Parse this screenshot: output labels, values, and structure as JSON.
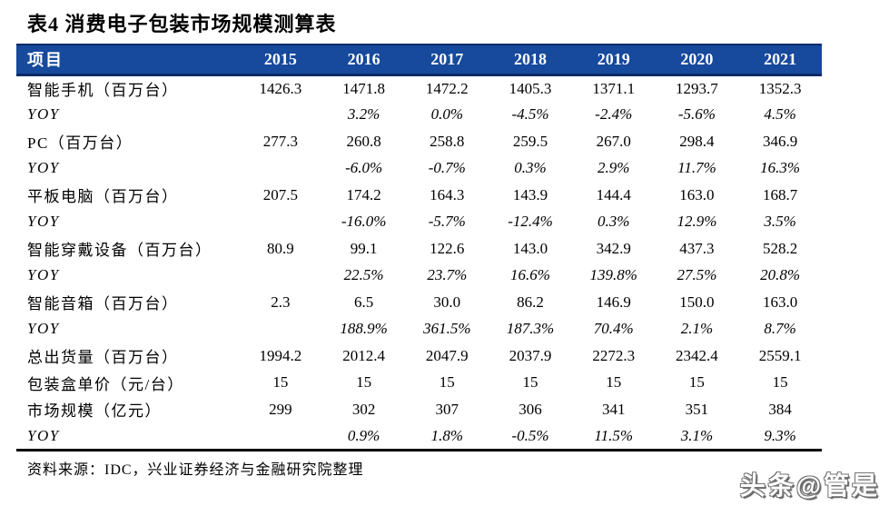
{
  "title": "表4 消费电子包装市场规模测算表",
  "colors": {
    "header_bg": "#17499D",
    "header_border": "#0A2A66",
    "table_bottom_border": "#000000",
    "text": "#000000",
    "header_text": "#FFFFFF"
  },
  "table": {
    "header": [
      "项目",
      "2015",
      "2016",
      "2017",
      "2018",
      "2019",
      "2020",
      "2021"
    ],
    "rows": [
      {
        "label": "智能手机（百万台）",
        "italic": false,
        "values": [
          "1426.3",
          "1471.8",
          "1472.2",
          "1405.3",
          "1371.1",
          "1293.7",
          "1352.3"
        ]
      },
      {
        "label": "YOY",
        "italic": true,
        "values": [
          "",
          "3.2%",
          "0.0%",
          "-4.5%",
          "-2.4%",
          "-5.6%",
          "4.5%"
        ]
      },
      {
        "label": "PC（百万台）",
        "italic": false,
        "values": [
          "277.3",
          "260.8",
          "258.8",
          "259.5",
          "267.0",
          "298.4",
          "346.9"
        ]
      },
      {
        "label": "YOY",
        "italic": true,
        "values": [
          "",
          "-6.0%",
          "-0.7%",
          "0.3%",
          "2.9%",
          "11.7%",
          "16.3%"
        ]
      },
      {
        "label": "平板电脑（百万台）",
        "italic": false,
        "values": [
          "207.5",
          "174.2",
          "164.3",
          "143.9",
          "144.4",
          "163.0",
          "168.7"
        ]
      },
      {
        "label": "YOY",
        "italic": true,
        "values": [
          "",
          "-16.0%",
          "-5.7%",
          "-12.4%",
          "0.3%",
          "12.9%",
          "3.5%"
        ]
      },
      {
        "label": "智能穿戴设备（百万台）",
        "italic": false,
        "values": [
          "80.9",
          "99.1",
          "122.6",
          "143.0",
          "342.9",
          "437.3",
          "528.2"
        ]
      },
      {
        "label": "YOY",
        "italic": true,
        "values": [
          "",
          "22.5%",
          "23.7%",
          "16.6%",
          "139.8%",
          "27.5%",
          "20.8%"
        ]
      },
      {
        "label": "智能音箱（百万台）",
        "italic": false,
        "values": [
          "2.3",
          "6.5",
          "30.0",
          "86.2",
          "146.9",
          "150.0",
          "163.0"
        ]
      },
      {
        "label": "YOY",
        "italic": true,
        "values": [
          "",
          "188.9%",
          "361.5%",
          "187.3%",
          "70.4%",
          "2.1%",
          "8.7%"
        ]
      },
      {
        "label": "总出货量（百万台）",
        "italic": false,
        "values": [
          "1994.2",
          "2012.4",
          "2047.9",
          "2037.9",
          "2272.3",
          "2342.4",
          "2559.1"
        ]
      },
      {
        "label": "包装盒单价（元/台）",
        "italic": false,
        "values": [
          "15",
          "15",
          "15",
          "15",
          "15",
          "15",
          "15"
        ]
      },
      {
        "label": "市场规模（亿元）",
        "italic": false,
        "values": [
          "299",
          "302",
          "307",
          "306",
          "341",
          "351",
          "384"
        ]
      },
      {
        "label": "YOY",
        "italic": true,
        "values": [
          "",
          "0.9%",
          "1.8%",
          "-0.5%",
          "11.5%",
          "3.1%",
          "9.3%"
        ]
      }
    ]
  },
  "source_note": "资料来源：IDC，兴业证券经济与金融研究院整理",
  "watermark": "头条@管是"
}
